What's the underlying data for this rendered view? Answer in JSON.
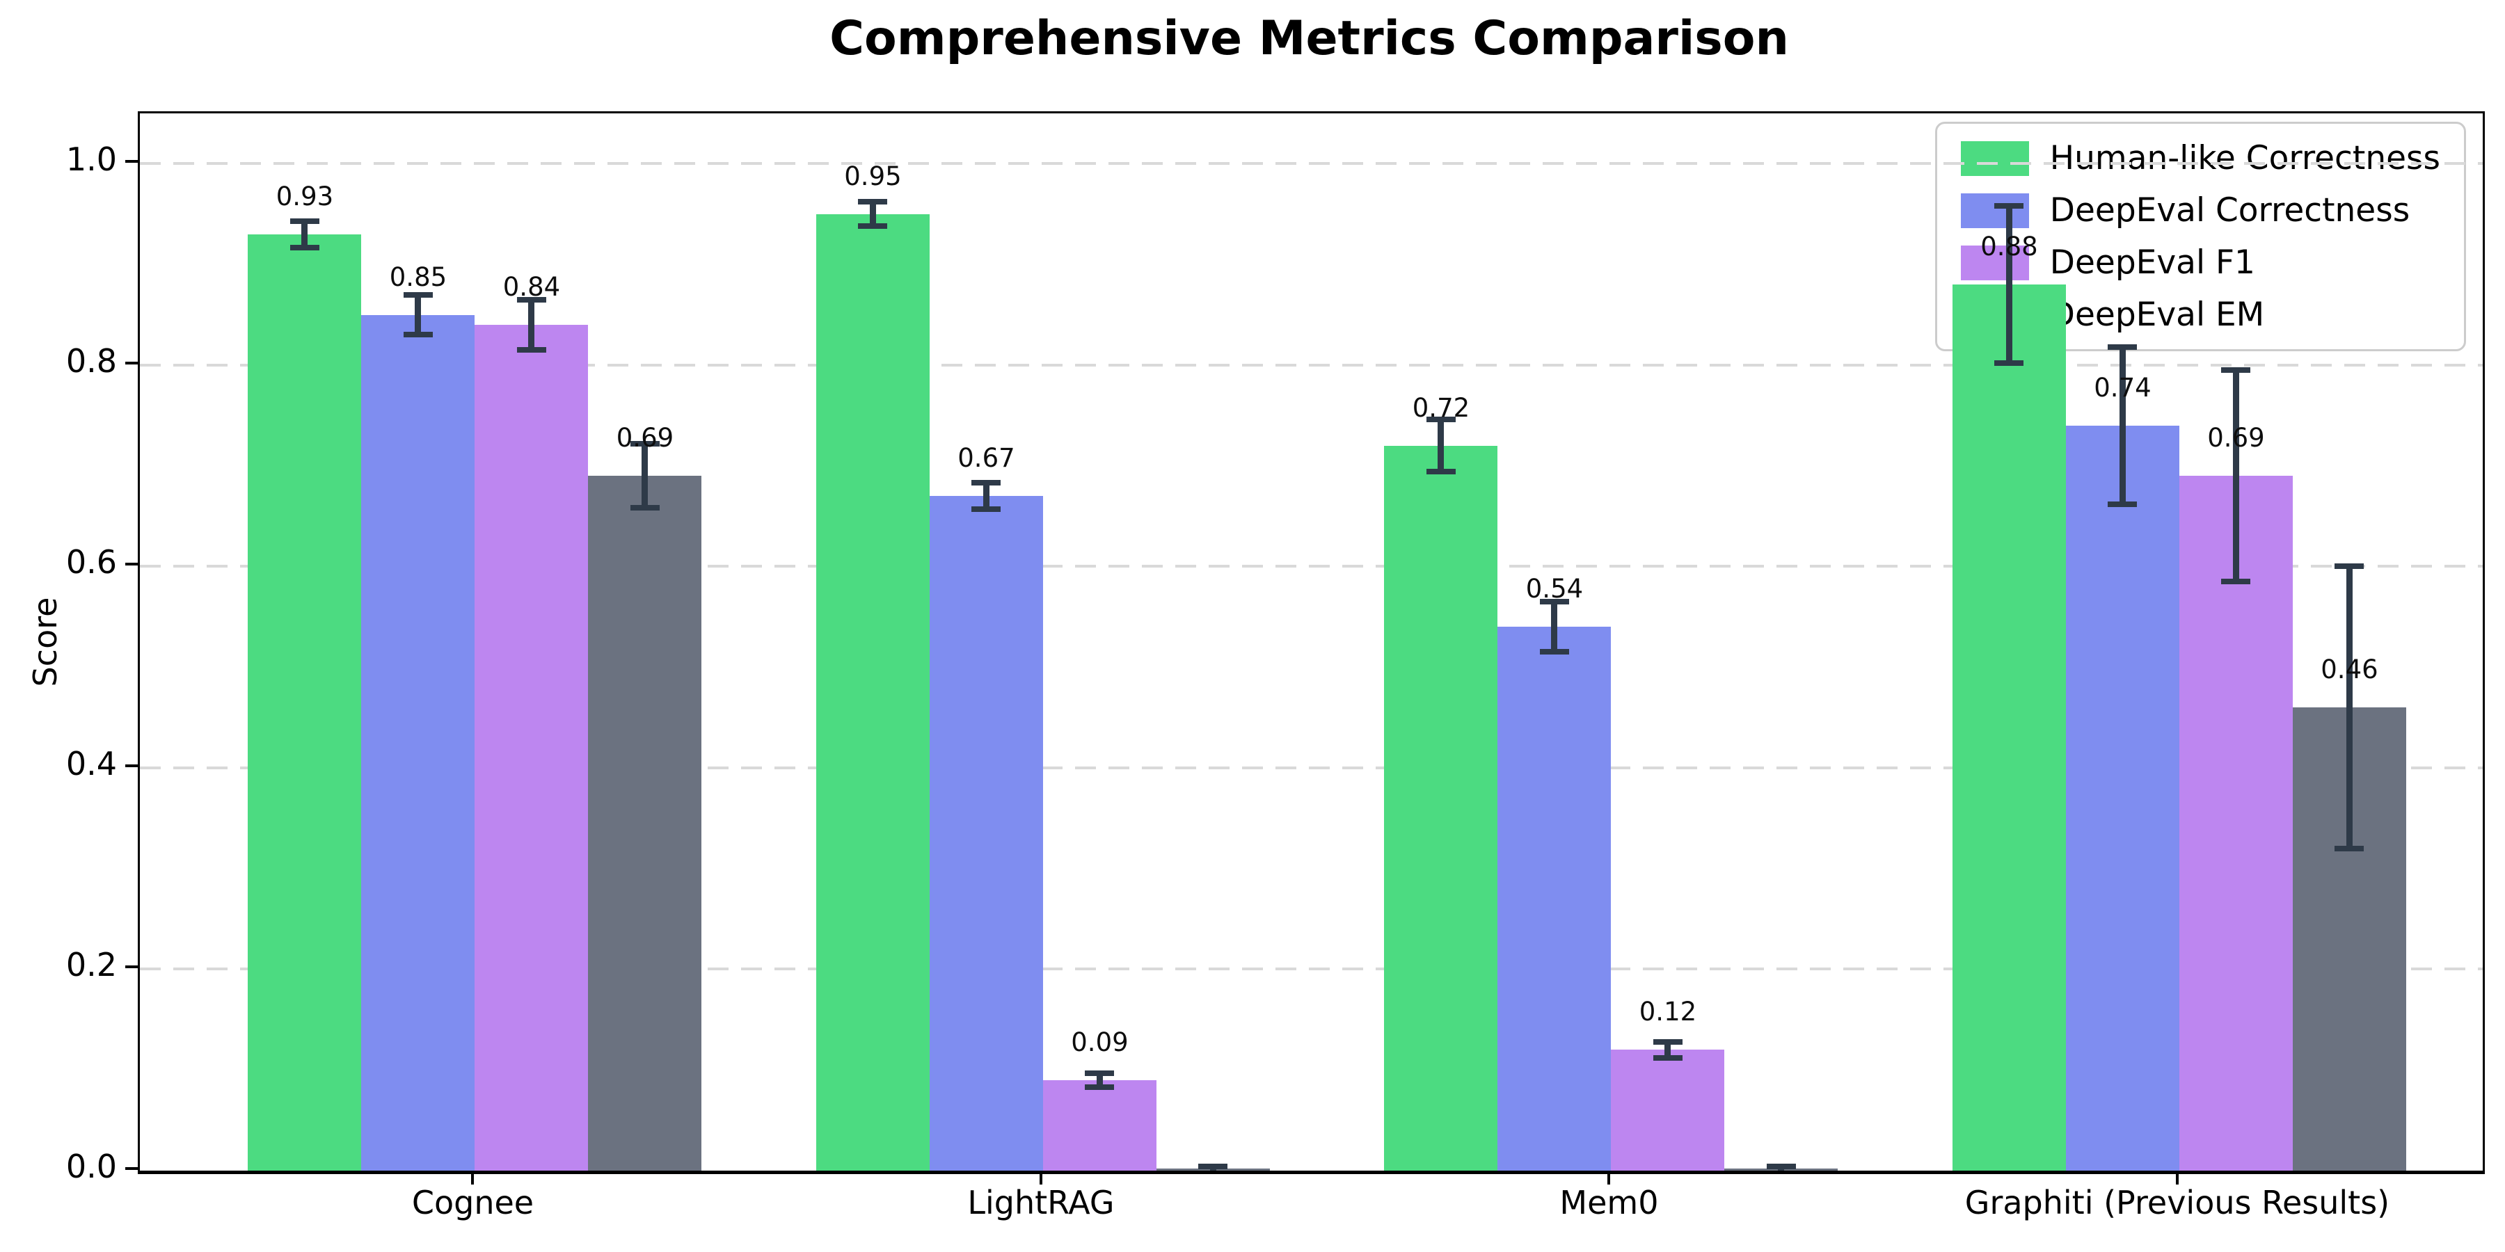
{
  "chart_data": {
    "type": "bar",
    "title": "Comprehensive Metrics Comparison",
    "ylabel": "Score",
    "xlabel": "",
    "ylim": [
      0,
      1.05
    ],
    "yticks": [
      0.0,
      0.2,
      0.4,
      0.6,
      0.8,
      1.0
    ],
    "ytick_labels": [
      "0.0",
      "0.2",
      "0.4",
      "0.6",
      "0.8",
      "1.0"
    ],
    "grid": "horizontal-dashed",
    "legend_position": "upper-right",
    "categories": [
      "Cognee",
      "LightRAG",
      "Mem0",
      "Graphiti (Previous Results)"
    ],
    "series": [
      {
        "name": "Human-like Correctness",
        "color": "#4cdb81",
        "values": [
          0.93,
          0.95,
          0.72,
          0.88
        ],
        "errors": [
          0.013,
          0.012,
          0.026,
          0.078
        ],
        "bar_labels": [
          "0.93",
          "0.95",
          "0.72",
          "0.88"
        ]
      },
      {
        "name": "DeepEval Correctness",
        "color": "#7f8df0",
        "values": [
          0.85,
          0.67,
          0.54,
          0.74
        ],
        "errors": [
          0.02,
          0.013,
          0.025,
          0.078
        ],
        "bar_labels": [
          "0.85",
          "0.67",
          "0.54",
          "0.74"
        ]
      },
      {
        "name": "DeepEval F1",
        "color": "#bd86f0",
        "values": [
          0.84,
          0.09,
          0.12,
          0.69
        ],
        "errors": [
          0.025,
          0.007,
          0.008,
          0.105
        ],
        "bar_labels": [
          "0.84",
          "0.09",
          "0.12",
          "0.69"
        ]
      },
      {
        "name": "DeepEval EM",
        "color": "#6b7280",
        "values": [
          0.69,
          0.0,
          0.0,
          0.46
        ],
        "errors": [
          0.032,
          0.004,
          0.004,
          0.14
        ],
        "bar_labels": [
          "0.69",
          "",
          "",
          "0.46"
        ]
      }
    ],
    "colors": {
      "error_bar": "#2e3a48",
      "grid": "#d9d9d9",
      "axis": "#000000",
      "background": "#ffffff"
    }
  }
}
